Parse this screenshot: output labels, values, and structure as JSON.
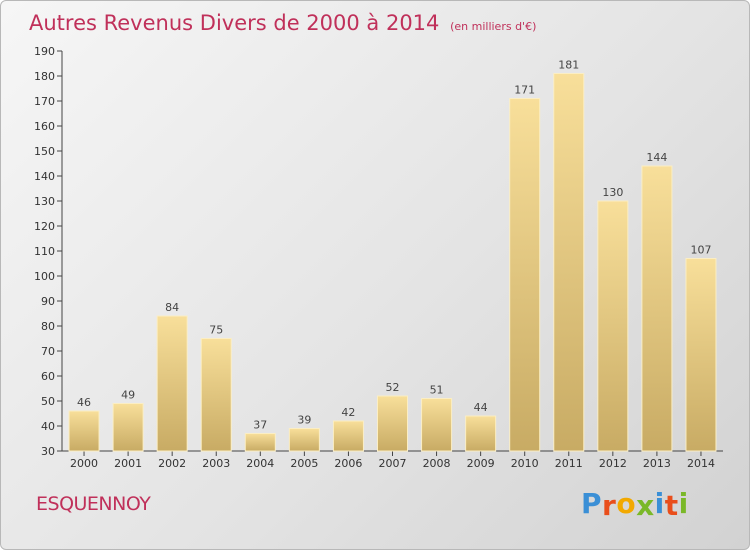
{
  "header": {
    "title": "Autres Revenus Divers de 2000 à 2014",
    "subtitle": "(en milliers d'€)"
  },
  "footer": {
    "place": "ESQUENNOY",
    "logo_letters": [
      "P",
      "r",
      "o",
      "x",
      "i",
      "t",
      "i"
    ],
    "logo_colors": [
      "#3a8fd6",
      "#e94e1b",
      "#f2a900",
      "#7ab828",
      "#3a8fd6",
      "#e94e1b",
      "#7ab828"
    ]
  },
  "colors": {
    "title": "#c0305a",
    "bar_light": "#f8df9a",
    "bar_dark": "#c8ab64"
  },
  "chart_data": {
    "type": "bar",
    "title": "Autres Revenus Divers de 2000 à 2014",
    "subtitle": "(en milliers d'€)",
    "categories": [
      "2000",
      "2001",
      "2002",
      "2003",
      "2004",
      "2005",
      "2006",
      "2007",
      "2008",
      "2009",
      "2010",
      "2011",
      "2012",
      "2013",
      "2014"
    ],
    "values": [
      46,
      49,
      84,
      75,
      37,
      39,
      42,
      52,
      51,
      44,
      171,
      181,
      130,
      144,
      107
    ],
    "ylim": [
      30,
      190
    ],
    "yticks": [
      30,
      40,
      50,
      60,
      70,
      80,
      90,
      100,
      110,
      120,
      130,
      140,
      150,
      160,
      170,
      180,
      190
    ],
    "grid": false,
    "data_labels": true
  }
}
